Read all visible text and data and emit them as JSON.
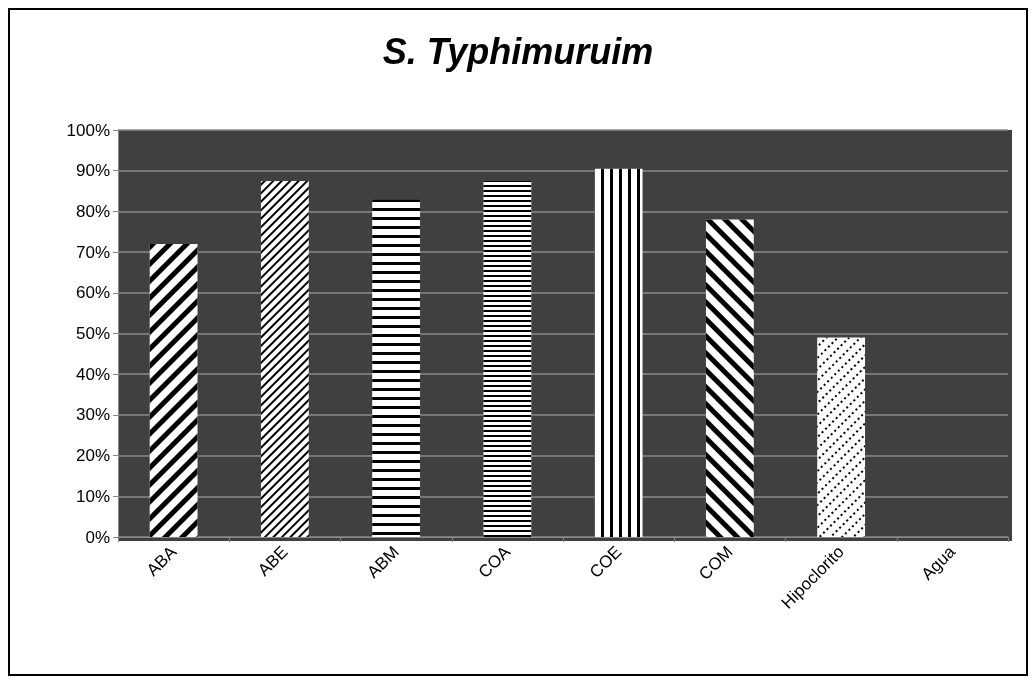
{
  "chart_data": {
    "type": "bar",
    "title": "S. Typhimuruim",
    "categories": [
      "ABA",
      "ABE",
      "ABM",
      "COA",
      "COE",
      "COM",
      "Hipoclorito",
      "Agua"
    ],
    "values": [
      72,
      87.5,
      83,
      87.5,
      90.5,
      78,
      49,
      0
    ],
    "color": "#ffffff",
    "ylim": [
      0,
      100
    ],
    "yticks": [
      {
        "value": 0,
        "label": "0%"
      },
      {
        "value": 10,
        "label": "10%"
      },
      {
        "value": 20,
        "label": "20%"
      },
      {
        "value": 30,
        "label": "30%"
      },
      {
        "value": 40,
        "label": "40%"
      },
      {
        "value": 50,
        "label": "50%"
      },
      {
        "value": 60,
        "label": "60%"
      },
      {
        "value": 70,
        "label": "70%"
      },
      {
        "value": 80,
        "label": "80%"
      },
      {
        "value": 90,
        "label": "90%"
      },
      {
        "value": 100,
        "label": "100%"
      }
    ],
    "grid": "y"
  }
}
